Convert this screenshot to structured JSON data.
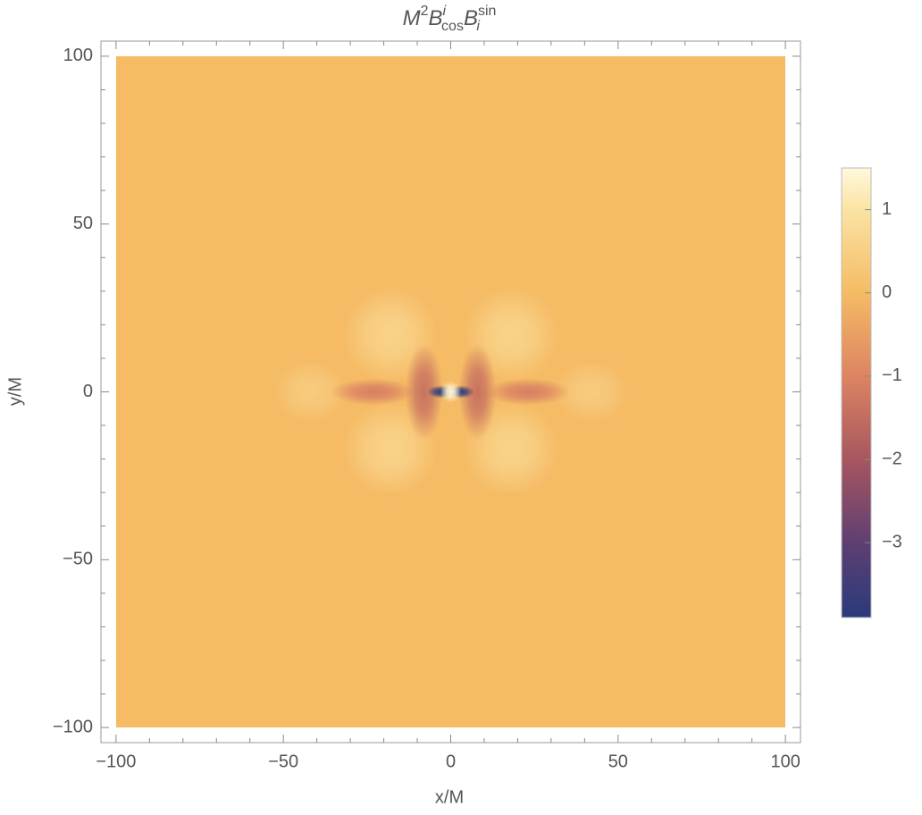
{
  "chart_data": {
    "type": "density",
    "title": {
      "m": "M",
      "m_sup": "2",
      "b1": "B",
      "b1_sup": "i",
      "b1_sub": "cos",
      "b2": "B",
      "b2_sup": "sin",
      "b2_sub": "i"
    },
    "xlabel": "x/M",
    "ylabel": "y/M",
    "xlim": [
      -104.5,
      104.5
    ],
    "ylim": [
      -104.5,
      104.5
    ],
    "xdomain": [
      -100,
      100
    ],
    "ydomain": [
      -100,
      100
    ],
    "xticks": [
      {
        "value": -100,
        "label": "−100"
      },
      {
        "value": -50,
        "label": "−50"
      },
      0,
      50,
      100
    ],
    "yticks": [
      {
        "value": -100,
        "label": "−100"
      },
      {
        "value": -50,
        "label": "−50"
      },
      0,
      50,
      100
    ],
    "xminor": [
      -90,
      -80,
      -70,
      -60,
      -40,
      -30,
      -20,
      -10,
      10,
      20,
      30,
      40,
      60,
      70,
      80,
      90
    ],
    "yminor": [
      -90,
      -80,
      -70,
      -60,
      -40,
      -30,
      -20,
      -10,
      10,
      20,
      30,
      40,
      60,
      70,
      80,
      90
    ],
    "base": 0,
    "x": [
      -18,
      18,
      -18,
      18,
      -42,
      42,
      -23,
      23,
      -8,
      8,
      -3,
      3,
      0
    ],
    "y": [
      17,
      17,
      -17,
      -17,
      0,
      0,
      0,
      0,
      0,
      0,
      0,
      0,
      0
    ],
    "sx": [
      9,
      9,
      9,
      9,
      7,
      7,
      8,
      8,
      3.5,
      3.5,
      2.5,
      2.5,
      2
    ],
    "sy": [
      9,
      9,
      9,
      9,
      6,
      6,
      2.5,
      2.5,
      9,
      9,
      1.2,
      1.2,
      2
    ],
    "values": [
      0.6,
      0.6,
      0.6,
      0.6,
      0.4,
      0.4,
      -1.1,
      -1.1,
      -1.4,
      -1.4,
      -3.9,
      -3.9,
      1.5
    ],
    "zlim": [
      -3.9,
      1.5
    ],
    "zticks": [
      1,
      0,
      {
        "value": -1,
        "label": "−1"
      },
      {
        "value": -2,
        "label": "−2"
      },
      {
        "value": -3,
        "label": "−3"
      }
    ],
    "colormap": [
      {
        "value": -3.9,
        "color": "#2a3a7b"
      },
      {
        "value": -3,
        "color": "#5e3f72"
      },
      {
        "value": -2,
        "color": "#a8565f"
      },
      {
        "value": -1,
        "color": "#dd8463"
      },
      {
        "value": 0,
        "color": "#f5bb65"
      },
      {
        "value": 1,
        "color": "#fbe3a3"
      },
      {
        "value": 1.5,
        "color": "#fff9dc"
      }
    ]
  }
}
